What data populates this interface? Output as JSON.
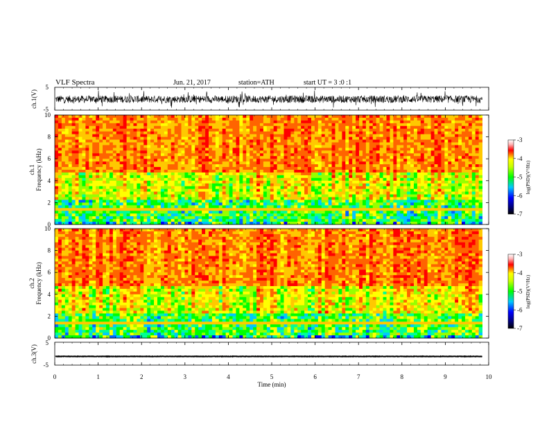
{
  "header": {
    "title": "VLF Spectra",
    "date": "Jun. 21, 2017",
    "station": "station=ATH",
    "start": "start UT =  3 :0 :1"
  },
  "chart_data": [
    {
      "type": "line",
      "panel": "ch1-waveform",
      "ylabel": "ch.1(V)",
      "ylim": [
        -5,
        5
      ],
      "yticks": [
        5,
        -5
      ],
      "xlim": [
        0,
        10
      ],
      "description_values": "noisy waveform, amplitude mostly within ±2 V with bursts to ±4 V"
    },
    {
      "type": "heatmap",
      "panel": "ch1-spectrogram",
      "ylabel_line1": "ch.1",
      "ylabel_line2": "Frequency (kHz)",
      "ylim": [
        0,
        10
      ],
      "yticks": [
        0,
        2,
        4,
        6,
        8,
        10
      ],
      "xlim": [
        0,
        10
      ],
      "colorbar": {
        "label": "log(PSD)(V²/Hz)",
        "range": [
          -7,
          -3
        ],
        "ticks": [
          -3,
          -4,
          -5,
          -6,
          -7
        ]
      }
    },
    {
      "type": "heatmap",
      "panel": "ch2-spectrogram",
      "ylabel_line1": "ch.2",
      "ylabel_line2": "Frequency (kHz)",
      "ylim": [
        0,
        10
      ],
      "yticks": [
        0,
        2,
        4,
        6,
        8,
        10
      ],
      "xlim": [
        0,
        10
      ],
      "colorbar": {
        "label": "log(PSD)(V²/Hz)",
        "range": [
          -7,
          -3
        ],
        "ticks": [
          -3,
          -4,
          -5,
          -6,
          -7
        ]
      }
    },
    {
      "type": "line",
      "panel": "ch3-waveform",
      "ylabel": "ch.3(V)",
      "ylim": [
        -5,
        5
      ],
      "yticks": [
        5,
        -5
      ],
      "xlim": [
        0,
        10
      ],
      "xlabel": "Time (min)",
      "xticks": [
        0,
        1,
        2,
        3,
        4,
        5,
        6,
        7,
        8,
        9,
        10
      ],
      "description_values": "nearly flat trace at about -1.2 V"
    }
  ]
}
